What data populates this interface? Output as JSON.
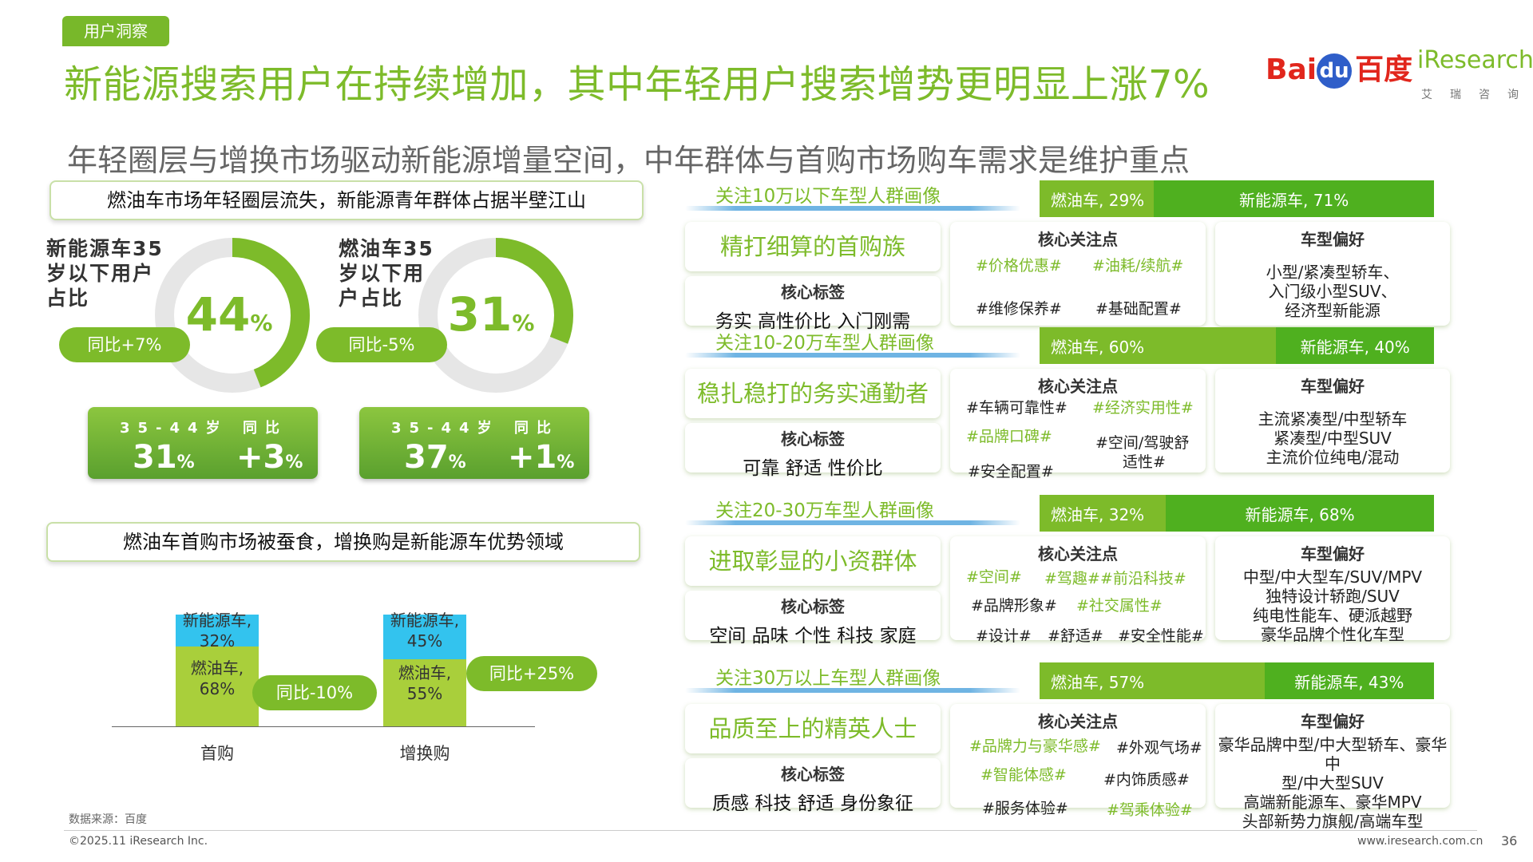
{
  "header": {
    "tag": "用户洞察",
    "title": "新能源搜索用户在持续增加，其中年轻用户搜索增势更明显上涨7%",
    "subtitle": "年轻圈层与增换市场驱动新能源增量空间，中年群体与首购市场购车需求是维护重点",
    "logo_baidu_pre": "Bai",
    "logo_baidu_du": "du",
    "logo_baidu_cn": "百度",
    "logo_ir": "iResearch",
    "logo_ir_sub": "艾瑞咨询"
  },
  "left_top": {
    "banner": "燃油车市场年轻圈层流失，新能源青年群体占据半壁江山",
    "rings": [
      {
        "label": "新能源车35岁以下用户占比",
        "value": "44",
        "unit": "%",
        "pct": 44,
        "pill": "同比+7%",
        "stat_hd1": "35-44岁",
        "stat_hd2": "同比",
        "stat_v1": "31",
        "stat_u1": "%",
        "stat_v2": "+3",
        "stat_u2": "%"
      },
      {
        "label": "燃油车35岁以下用户占比",
        "value": "31",
        "unit": "%",
        "pct": 31,
        "pill": "同比-5%",
        "stat_hd1": "35-44岁",
        "stat_hd2": "同比",
        "stat_v1": "37",
        "stat_u1": "%",
        "stat_v2": "+1",
        "stat_u2": "%"
      }
    ]
  },
  "left_bottom": {
    "banner": "燃油车首购市场被蚕食，增换购是新能源车优势领域",
    "pill1": "同比-10%",
    "pill2": "同比+25%"
  },
  "chart_data": {
    "type": "bar",
    "stacked": true,
    "categories": [
      "首购",
      "增换购"
    ],
    "series": [
      {
        "name": "燃油车",
        "values": [
          68,
          55
        ],
        "color": "#a9cf3b"
      },
      {
        "name": "新能源车",
        "values": [
          32,
          45
        ],
        "color": "#33c3ee"
      }
    ],
    "labels": {
      "ev": [
        "新能源车,",
        "新能源车,"
      ],
      "ev_val": [
        "32%",
        "45%"
      ],
      "ice": [
        "燃油车,",
        "燃油车,"
      ],
      "ice_val": [
        "68%",
        "55%"
      ]
    }
  },
  "right": {
    "core_h": "核心关注点",
    "pref_h": "车型偏好",
    "tag_h": "核心标签",
    "sections": [
      {
        "title": "关注10万以下车型人群画像",
        "ice": "燃油车, 29%",
        "ev": "新能源车, 71%",
        "ice_pct": 29,
        "persona": "精打细算的首购族",
        "tags": "务实 高性价比 入门刚需",
        "kw": [
          "#价格优惠#",
          "#油耗/续航#",
          "#维修保养#",
          "#基础配置#"
        ],
        "pref": [
          "小型/紧凑型轿车、",
          "入门级小型SUV、",
          "经济型新能源"
        ]
      },
      {
        "title": "关注10-20万车型人群画像",
        "ice": "燃油车, 60%",
        "ev": "新能源车, 40%",
        "ice_pct": 60,
        "persona": "稳扎稳打的务实通勤者",
        "tags": "可靠 舒适 性价比",
        "kw": [
          "#车辆可靠性#",
          "#经济实用性#",
          "#品牌口碑#",
          "#空间/驾驶舒",
          "适性#",
          "#安全配置#"
        ],
        "pref": [
          "主流紧凑型/中型轿车",
          "紧凑型/中型SUV",
          "主流价位纯电/混动"
        ]
      },
      {
        "title": "关注20-30万车型人群画像",
        "ice": "燃油车, 32%",
        "ev": "新能源车, 68%",
        "ice_pct": 32,
        "persona": "进取彰显的小资群体",
        "tags": "空间 品味 个性 科技 家庭",
        "kw": [
          "#空间#",
          "#驾趣#",
          "#前沿科技#",
          "#品牌形象#",
          "#社交属性#",
          "#设计#",
          "#舒适#",
          "#安全性能#"
        ],
        "pref": [
          "中型/中大型车/SUV/MPV",
          "独特设计轿跑/SUV",
          "纯电性能车、硬派越野",
          "豪华品牌个性化车型"
        ]
      },
      {
        "title": "关注30万以上车型人群画像",
        "ice": "燃油车, 57%",
        "ev": "新能源车, 43%",
        "ice_pct": 57,
        "persona": "品质至上的精英人士",
        "tags": "质感 科技 舒适 身份象征",
        "kw": [
          "#品牌力与豪华感#",
          "#外观气场#",
          "#智能体感#",
          "#内饰质感#",
          "#服务体验#",
          "#驾乘体验#"
        ],
        "pref": [
          "豪华品牌中型/中大型轿车、豪华中",
          "型/中大型SUV",
          "高端新能源车、豪华MPV",
          "头部新势力旗舰/高端车型"
        ]
      }
    ]
  },
  "footer": {
    "source": "数据来源：百度",
    "copyright": "©2025.11 iResearch Inc.",
    "site": "www.iresearch.com.cn",
    "page": "36"
  },
  "colors": {
    "accent": "#7dbb2a",
    "ice_bar": "#7dbb2a",
    "ev_bar": "#4fb01f"
  }
}
